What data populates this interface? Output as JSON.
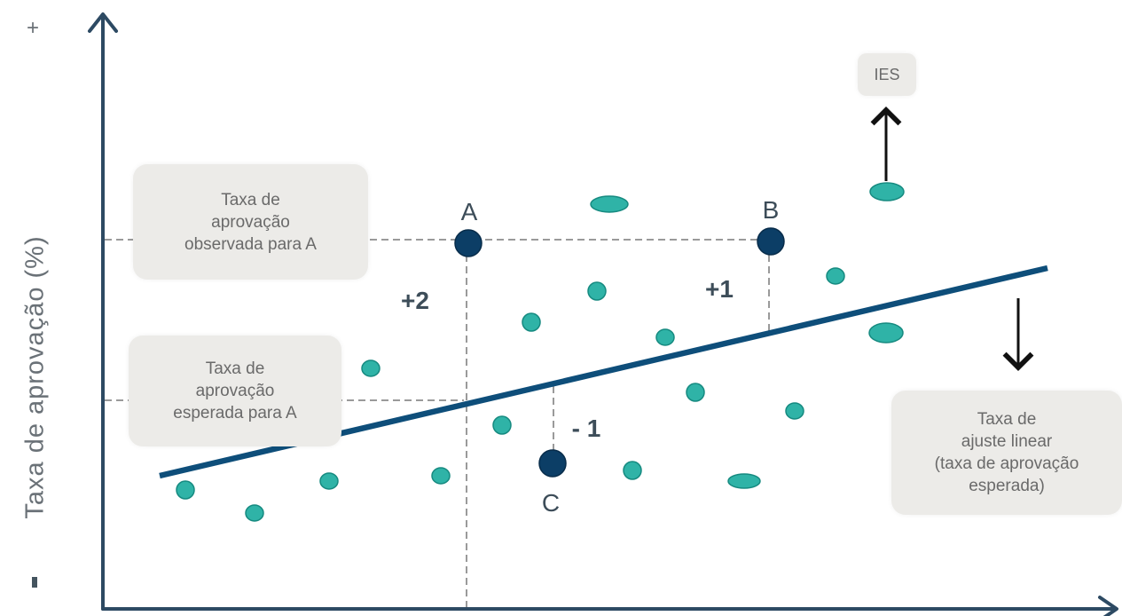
{
  "y_axis": {
    "label": "Taxa de  aprovação (%)",
    "plus": "+",
    "minus": "-"
  },
  "points": {
    "a": {
      "label": "A"
    },
    "b": {
      "label": "B"
    },
    "c": {
      "label": "C"
    }
  },
  "deltas": {
    "a": "+2",
    "b": "+1",
    "c": "- 1"
  },
  "boxes": {
    "observed": [
      "Taxa de",
      "aprovação",
      "observada para A"
    ],
    "expected": [
      "Taxa de",
      "aprovação",
      "esperada para A"
    ],
    "linear": [
      "Taxa de",
      "ajuste linear",
      "(taxa de aprovação",
      "esperada)"
    ],
    "ies": "IES"
  },
  "colors": {
    "axis": "#2d4a63",
    "regression_line": "#0e4e7a",
    "key_point": "#0c3e66",
    "scatter_point": "#2fb3a7",
    "scatter_stroke": "#168a80",
    "guide": "#9a9a9a",
    "text": "#3d4d59"
  }
}
